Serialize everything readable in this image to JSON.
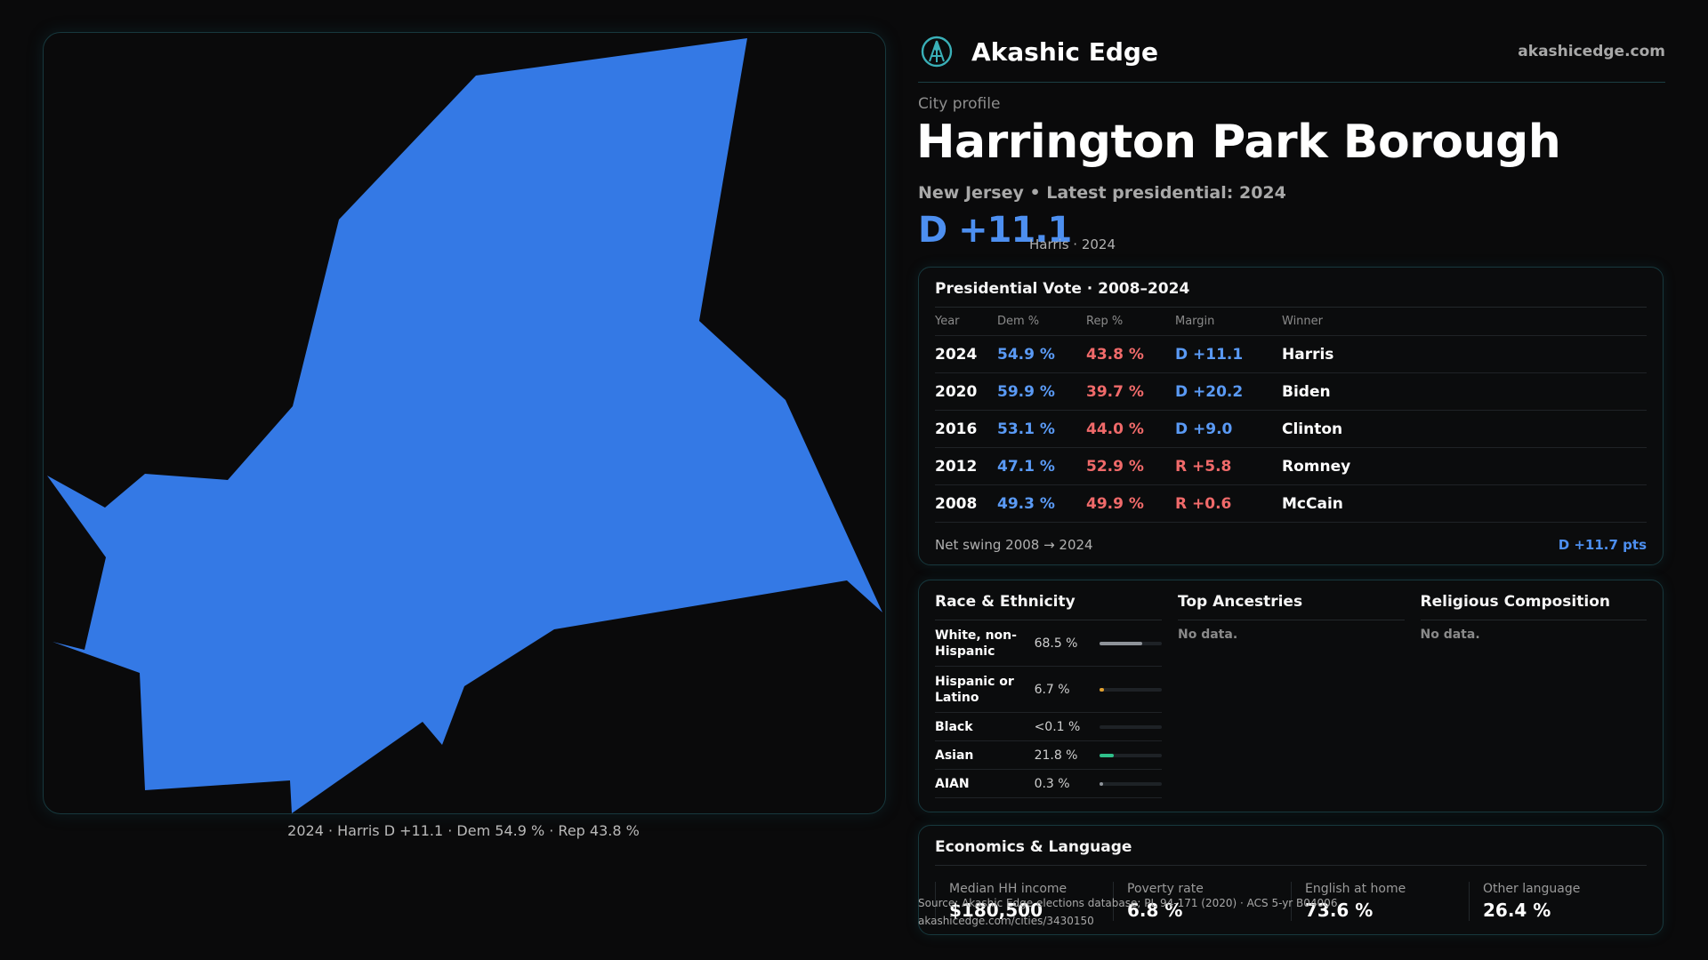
{
  "brand": {
    "name": "Akashic Edge",
    "url": "akashicedge.com"
  },
  "map": {
    "fill_color": "#3479e5",
    "caption": "2024 · Harris D +11.1 · Dem 54.9 % · Rep 43.8 %"
  },
  "profile": {
    "kicker": "City profile",
    "title": "Harrington Park Borough",
    "subtitle": "New Jersey • Latest presidential: 2024",
    "margin": "D +11.1",
    "margin_meta": "Harris · 2024"
  },
  "presidential": {
    "title": "Presidential Vote · 2008–2024",
    "headers": {
      "year": "Year",
      "dem": "Dem %",
      "rep": "Rep %",
      "margin": "Margin",
      "winner": "Winner"
    },
    "rows": [
      {
        "year": "2024",
        "dem": "54.9 %",
        "rep": "43.8 %",
        "margin": "D +11.1",
        "party": "dem",
        "winner": "Harris"
      },
      {
        "year": "2020",
        "dem": "59.9 %",
        "rep": "39.7 %",
        "margin": "D +20.2",
        "party": "dem",
        "winner": "Biden"
      },
      {
        "year": "2016",
        "dem": "53.1 %",
        "rep": "44.0 %",
        "margin": "D +9.0",
        "party": "dem",
        "winner": "Clinton"
      },
      {
        "year": "2012",
        "dem": "47.1 %",
        "rep": "52.9 %",
        "margin": "R +5.8",
        "party": "rep",
        "winner": "Romney"
      },
      {
        "year": "2008",
        "dem": "49.3 %",
        "rep": "49.9 %",
        "margin": "R +0.6",
        "party": "rep",
        "winner": "McCain"
      }
    ],
    "swing_label": "Net swing 2008 → 2024",
    "swing_value": "D +11.7 pts"
  },
  "race": {
    "title": "Race & Ethnicity",
    "rows": [
      {
        "label": "White, non-Hispanic",
        "value": "68.5 %",
        "fraction": 0.685,
        "color": "#8e9399"
      },
      {
        "label": "Hispanic or Latino",
        "value": "6.7 %",
        "fraction": 0.067,
        "color": "#e0a030"
      },
      {
        "label": "Black",
        "value": "<0.1 %",
        "fraction": 0.0,
        "color": "#8e9399"
      },
      {
        "label": "Asian",
        "value": "21.8 %",
        "fraction": 0.218,
        "color": "#2fc08a"
      },
      {
        "label": "AIAN",
        "value": "0.3 %",
        "fraction": 0.003,
        "color": "#8e9399"
      }
    ]
  },
  "ancestries": {
    "title": "Top Ancestries",
    "empty": "No data."
  },
  "religion": {
    "title": "Religious Composition",
    "empty": "No data."
  },
  "economics": {
    "title": "Economics & Language",
    "cells": [
      {
        "label": "Median HH income",
        "value": "$180,500"
      },
      {
        "label": "Poverty rate",
        "value": "6.8 %"
      },
      {
        "label": "English at home",
        "value": "73.6 %"
      },
      {
        "label": "Other language",
        "value": "26.4 %"
      }
    ]
  },
  "source": {
    "line1": "Source: Akashic Edge elections database; PL 94-171 (2020) · ACS 5-yr B04006",
    "line2": "akashicedge.com/cities/3430150"
  }
}
